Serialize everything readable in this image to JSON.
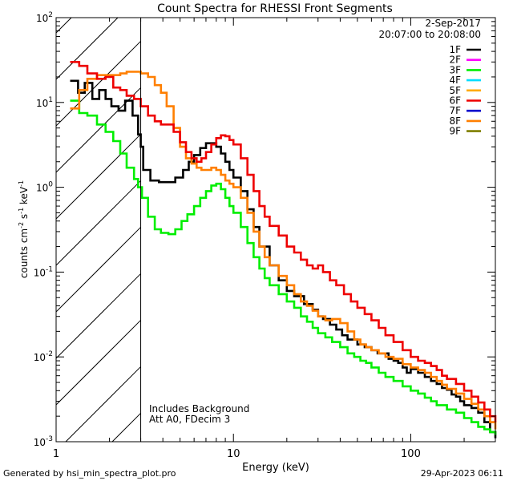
{
  "chart_data": {
    "type": "line",
    "title": "Count Spectra for RHESSI Front Segments",
    "xlabel": "Energy (keV)",
    "ylabel_parts": [
      "counts cm",
      "-2",
      " s",
      "-1",
      " keV",
      "-1"
    ],
    "xscale": "log",
    "yscale": "log",
    "xlim": [
      1,
      300
    ],
    "ylim": [
      0.001,
      100
    ],
    "x_ticks": [
      {
        "v": 1,
        "label": "1"
      },
      {
        "v": 10,
        "label": "10"
      },
      {
        "v": 100,
        "label": "100"
      }
    ],
    "y_ticks": [
      {
        "v": 0.001,
        "base": "10",
        "exp": "-3"
      },
      {
        "v": 0.01,
        "base": "10",
        "exp": "-2"
      },
      {
        "v": 0.1,
        "base": "10",
        "exp": "-1"
      },
      {
        "v": 1,
        "base": "10",
        "exp": "0"
      },
      {
        "v": 10,
        "base": "10",
        "exp": "1"
      },
      {
        "v": 100,
        "base": "10",
        "exp": "2"
      }
    ],
    "attenuator_cutoff_kev": 3,
    "legend_header": [
      "2-Sep-2017",
      "20:07:00 to 20:08:00"
    ],
    "legend": [
      {
        "label": "1F",
        "color": "#000000"
      },
      {
        "label": "2F",
        "color": "#ff00ff"
      },
      {
        "label": "3F",
        "color": "#00ee00"
      },
      {
        "label": "4F",
        "color": "#00ddff"
      },
      {
        "label": "5F",
        "color": "#ffaa00"
      },
      {
        "label": "6F",
        "color": "#ee0000"
      },
      {
        "label": "7F",
        "color": "#0000cc"
      },
      {
        "label": "8F",
        "color": "#ff7f00"
      },
      {
        "label": "9F",
        "color": "#7f7f00"
      }
    ],
    "annotations": [
      "Includes Background",
      "Att A0, FDecim 3"
    ],
    "series": [
      {
        "name": "1F",
        "color": "#000000",
        "points": [
          [
            1.2,
            18
          ],
          [
            1.33,
            13
          ],
          [
            1.45,
            17
          ],
          [
            1.6,
            11
          ],
          [
            1.75,
            14
          ],
          [
            1.9,
            11
          ],
          [
            2.05,
            9
          ],
          [
            2.25,
            8
          ],
          [
            2.45,
            10.5
          ],
          [
            2.7,
            7
          ],
          [
            2.9,
            4.2
          ],
          [
            3.0,
            3
          ],
          [
            3.1,
            1.6
          ],
          [
            3.4,
            1.2
          ],
          [
            3.8,
            1.15
          ],
          [
            4.3,
            1.15
          ],
          [
            4.7,
            1.3
          ],
          [
            5.2,
            1.6
          ],
          [
            5.6,
            2.0
          ],
          [
            6.0,
            2.4
          ],
          [
            6.5,
            2.9
          ],
          [
            7.0,
            3.3
          ],
          [
            7.5,
            3.3
          ],
          [
            8.0,
            3.0
          ],
          [
            8.5,
            2.5
          ],
          [
            9.0,
            2.0
          ],
          [
            9.5,
            1.6
          ],
          [
            10,
            1.3
          ],
          [
            11,
            0.9
          ],
          [
            12,
            0.55
          ],
          [
            13,
            0.34
          ],
          [
            14,
            0.2
          ],
          [
            16,
            0.12
          ],
          [
            18,
            0.08
          ],
          [
            20,
            0.06
          ],
          [
            22,
            0.052
          ],
          [
            25,
            0.042
          ],
          [
            28,
            0.036
          ],
          [
            30,
            0.03
          ],
          [
            32,
            0.028
          ],
          [
            35,
            0.024
          ],
          [
            38,
            0.021
          ],
          [
            41,
            0.018
          ],
          [
            44,
            0.016
          ],
          [
            47,
            0.016
          ],
          [
            50,
            0.014
          ],
          [
            55,
            0.013
          ],
          [
            60,
            0.012
          ],
          [
            65,
            0.011
          ],
          [
            70,
            0.011
          ],
          [
            75,
            0.0095
          ],
          [
            80,
            0.009
          ],
          [
            85,
            0.0085
          ],
          [
            90,
            0.0075
          ],
          [
            95,
            0.0065
          ],
          [
            100,
            0.0072
          ],
          [
            110,
            0.0065
          ],
          [
            120,
            0.0058
          ],
          [
            130,
            0.0052
          ],
          [
            140,
            0.0048
          ],
          [
            150,
            0.0043
          ],
          [
            160,
            0.0041
          ],
          [
            170,
            0.0036
          ],
          [
            180,
            0.0034
          ],
          [
            190,
            0.003
          ],
          [
            200,
            0.0027
          ],
          [
            220,
            0.0025
          ],
          [
            240,
            0.0022
          ],
          [
            260,
            0.0017
          ],
          [
            280,
            0.0013
          ],
          [
            300,
            0.0011
          ]
        ]
      },
      {
        "name": "3F",
        "color": "#00ee00",
        "points": [
          [
            1.2,
            10.5
          ],
          [
            1.35,
            7.5
          ],
          [
            1.5,
            7
          ],
          [
            1.7,
            5.5
          ],
          [
            1.9,
            4.5
          ],
          [
            2.1,
            3.5
          ],
          [
            2.3,
            2.5
          ],
          [
            2.5,
            1.7
          ],
          [
            2.75,
            1.25
          ],
          [
            2.9,
            1.0
          ],
          [
            3.05,
            0.75
          ],
          [
            3.3,
            0.45
          ],
          [
            3.6,
            0.32
          ],
          [
            3.9,
            0.29
          ],
          [
            4.3,
            0.28
          ],
          [
            4.7,
            0.32
          ],
          [
            5.1,
            0.4
          ],
          [
            5.5,
            0.48
          ],
          [
            6.0,
            0.6
          ],
          [
            6.5,
            0.75
          ],
          [
            7.0,
            0.9
          ],
          [
            7.5,
            1.05
          ],
          [
            8.0,
            1.1
          ],
          [
            8.5,
            0.95
          ],
          [
            9.0,
            0.75
          ],
          [
            9.5,
            0.6
          ],
          [
            10,
            0.5
          ],
          [
            11,
            0.34
          ],
          [
            12,
            0.22
          ],
          [
            13,
            0.15
          ],
          [
            14,
            0.11
          ],
          [
            15,
            0.085
          ],
          [
            16,
            0.07
          ],
          [
            18,
            0.055
          ],
          [
            20,
            0.045
          ],
          [
            22,
            0.038
          ],
          [
            24,
            0.03
          ],
          [
            26,
            0.026
          ],
          [
            28,
            0.022
          ],
          [
            30,
            0.019
          ],
          [
            33,
            0.017
          ],
          [
            36,
            0.015
          ],
          [
            40,
            0.013
          ],
          [
            44,
            0.011
          ],
          [
            48,
            0.01
          ],
          [
            52,
            0.009
          ],
          [
            56,
            0.0085
          ],
          [
            60,
            0.0075
          ],
          [
            66,
            0.0065
          ],
          [
            72,
            0.0058
          ],
          [
            80,
            0.0052
          ],
          [
            90,
            0.0045
          ],
          [
            100,
            0.004
          ],
          [
            110,
            0.0037
          ],
          [
            120,
            0.0033
          ],
          [
            130,
            0.003
          ],
          [
            140,
            0.0027
          ],
          [
            160,
            0.0024
          ],
          [
            180,
            0.0022
          ],
          [
            200,
            0.0019
          ],
          [
            220,
            0.0017
          ],
          [
            240,
            0.0015
          ],
          [
            260,
            0.0014
          ],
          [
            280,
            0.0013
          ],
          [
            300,
            0.0012
          ]
        ]
      },
      {
        "name": "8F",
        "color": "#ff7f00",
        "points": [
          [
            1.2,
            8.5
          ],
          [
            1.35,
            14
          ],
          [
            1.5,
            19
          ],
          [
            1.7,
            21
          ],
          [
            1.9,
            21
          ],
          [
            2.1,
            21
          ],
          [
            2.3,
            22
          ],
          [
            2.5,
            23
          ],
          [
            2.75,
            23
          ],
          [
            3.0,
            22
          ],
          [
            3.3,
            20
          ],
          [
            3.6,
            16
          ],
          [
            3.9,
            13
          ],
          [
            4.2,
            9
          ],
          [
            4.6,
            5
          ],
          [
            5.0,
            3.0
          ],
          [
            5.4,
            2.2
          ],
          [
            5.8,
            1.9
          ],
          [
            6.2,
            1.7
          ],
          [
            6.6,
            1.6
          ],
          [
            7.0,
            1.6
          ],
          [
            7.5,
            1.7
          ],
          [
            8.0,
            1.6
          ],
          [
            8.5,
            1.4
          ],
          [
            9.0,
            1.2
          ],
          [
            9.5,
            1.1
          ],
          [
            10,
            1.0
          ],
          [
            11,
            0.75
          ],
          [
            12,
            0.5
          ],
          [
            13,
            0.3
          ],
          [
            14,
            0.2
          ],
          [
            15,
            0.15
          ],
          [
            16,
            0.12
          ],
          [
            18,
            0.09
          ],
          [
            20,
            0.07
          ],
          [
            22,
            0.055
          ],
          [
            24,
            0.045
          ],
          [
            26,
            0.04
          ],
          [
            28,
            0.035
          ],
          [
            30,
            0.03
          ],
          [
            33,
            0.027
          ],
          [
            36,
            0.028
          ],
          [
            40,
            0.025
          ],
          [
            44,
            0.02
          ],
          [
            48,
            0.016
          ],
          [
            52,
            0.014
          ],
          [
            56,
            0.013
          ],
          [
            60,
            0.012
          ],
          [
            66,
            0.011
          ],
          [
            72,
            0.01
          ],
          [
            80,
            0.0095
          ],
          [
            90,
            0.0082
          ],
          [
            100,
            0.0075
          ],
          [
            110,
            0.007
          ],
          [
            120,
            0.0065
          ],
          [
            130,
            0.0058
          ],
          [
            140,
            0.0052
          ],
          [
            150,
            0.0047
          ],
          [
            160,
            0.0042
          ],
          [
            180,
            0.0037
          ],
          [
            200,
            0.0032
          ],
          [
            220,
            0.0028
          ],
          [
            240,
            0.0024
          ],
          [
            260,
            0.002
          ],
          [
            280,
            0.0017
          ],
          [
            300,
            0.0014
          ]
        ]
      },
      {
        "name": "6F",
        "color": "#ee0000",
        "points": [
          [
            1.2,
            30
          ],
          [
            1.35,
            27
          ],
          [
            1.5,
            22
          ],
          [
            1.7,
            19
          ],
          [
            1.9,
            20
          ],
          [
            2.1,
            15
          ],
          [
            2.3,
            14
          ],
          [
            2.5,
            12
          ],
          [
            2.75,
            11
          ],
          [
            3.0,
            9
          ],
          [
            3.3,
            7
          ],
          [
            3.6,
            6
          ],
          [
            3.9,
            5.5
          ],
          [
            4.2,
            5.5
          ],
          [
            4.6,
            4.5
          ],
          [
            5.0,
            3.4
          ],
          [
            5.4,
            2.6
          ],
          [
            5.8,
            2.2
          ],
          [
            6.2,
            2.0
          ],
          [
            6.6,
            2.2
          ],
          [
            7.0,
            2.6
          ],
          [
            7.5,
            3.2
          ],
          [
            8.0,
            3.8
          ],
          [
            8.5,
            4.1
          ],
          [
            9.0,
            4.0
          ],
          [
            9.5,
            3.6
          ],
          [
            10,
            3.2
          ],
          [
            11,
            2.2
          ],
          [
            12,
            1.4
          ],
          [
            13,
            0.9
          ],
          [
            14,
            0.6
          ],
          [
            15,
            0.45
          ],
          [
            16,
            0.35
          ],
          [
            18,
            0.27
          ],
          [
            20,
            0.2
          ],
          [
            22,
            0.17
          ],
          [
            24,
            0.14
          ],
          [
            26,
            0.12
          ],
          [
            28,
            0.11
          ],
          [
            30,
            0.12
          ],
          [
            32,
            0.1
          ],
          [
            35,
            0.08
          ],
          [
            38,
            0.07
          ],
          [
            42,
            0.055
          ],
          [
            46,
            0.045
          ],
          [
            50,
            0.038
          ],
          [
            55,
            0.032
          ],
          [
            60,
            0.027
          ],
          [
            66,
            0.022
          ],
          [
            72,
            0.018
          ],
          [
            80,
            0.015
          ],
          [
            90,
            0.012
          ],
          [
            100,
            0.01
          ],
          [
            110,
            0.009
          ],
          [
            120,
            0.0085
          ],
          [
            130,
            0.0078
          ],
          [
            140,
            0.007
          ],
          [
            150,
            0.006
          ],
          [
            160,
            0.0055
          ],
          [
            180,
            0.0048
          ],
          [
            200,
            0.004
          ],
          [
            220,
            0.0034
          ],
          [
            240,
            0.0029
          ],
          [
            260,
            0.0024
          ],
          [
            280,
            0.002
          ],
          [
            300,
            0.0017
          ]
        ]
      }
    ]
  },
  "footer": {
    "left": "Generated by hsi_min_spectra_plot.pro",
    "right": "29-Apr-2023 06:11"
  }
}
